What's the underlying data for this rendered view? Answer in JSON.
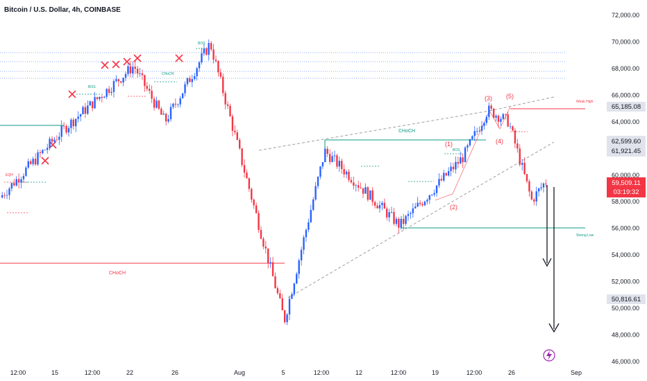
{
  "header": {
    "title": "Bitcoin / U.S. Dollar, 4h, COINBASE"
  },
  "colors": {
    "up": "#2962ff",
    "down": "#f23645",
    "teal": "#089981",
    "red": "#f23645",
    "blue_dotted": "#2962ff",
    "grey_dashed": "#9e9e9e",
    "axis_text": "#131722"
  },
  "price_axis": {
    "labels": [
      "72,000.00",
      "70,000.00",
      "68,000.00",
      "66,000.00",
      "64,000.00",
      "62,000.00",
      "60,000.00",
      "58,000.00",
      "56,000.00",
      "54,000.00",
      "52,000.00",
      "50,000.00",
      "48,000.00",
      "46,000.00"
    ],
    "tag_65185": "65,185.08",
    "tag_62599": "62,599.60",
    "tag_61921": "61,921.45",
    "tag_current": "59,509.11",
    "tag_countdown": "03:19:32",
    "tag_50816": "50,816.61"
  },
  "time_axis": {
    "labels": [
      "12:00",
      "15",
      "12:00",
      "22",
      "26",
      "Aug",
      "5",
      "12:00",
      "12",
      "12:00",
      "19",
      "12:00",
      "26",
      "Sep"
    ]
  },
  "annotations": {
    "choch_big": "CHoCH",
    "choch_mid": "CHoCH",
    "weak_high": "Weak High",
    "strong_low": "Strong Low",
    "wave1": "(1)",
    "wave2": "(2)",
    "wave3": "(3)",
    "wave4": "(4)",
    "wave5": "(5)",
    "bos_top": "BOS",
    "bos_left": "BOS",
    "bos_right": "BOS",
    "eqh": "EQH",
    "choch_small": "CHoCH"
  },
  "chart_data": {
    "type": "candlestick",
    "title": "Bitcoin / U.S. Dollar, 4h, COINBASE",
    "symbol": "BTCUSD",
    "timeframe": "4h",
    "exchange": "COINBASE",
    "ylim": [
      46000,
      72000
    ],
    "current_price": 59509.11,
    "x_ticks": [
      "12:00",
      "15",
      "12:00",
      "22",
      "26",
      "Aug",
      "5",
      "12:00",
      "12",
      "12:00",
      "19",
      "12:00",
      "26",
      "Sep"
    ],
    "key_levels": [
      {
        "name": "Weak High",
        "value": 65185.08
      },
      {
        "name": "Strong Low",
        "value": 56100
      },
      {
        "value": 62599.6
      },
      {
        "value": 61921.45
      },
      {
        "value": 50816.61
      }
    ],
    "swing_path": [
      {
        "t": "Jul 10",
        "price": 58200
      },
      {
        "t": "Jul 15",
        "price": 63500
      },
      {
        "t": "Jul 22",
        "price": 68200
      },
      {
        "t": "Jul 25",
        "price": 64000
      },
      {
        "t": "Jul 29",
        "price": 69900
      },
      {
        "t": "Aug 5",
        "price": 49100
      },
      {
        "t": "Aug 9",
        "price": 61800
      },
      {
        "t": "Aug 15",
        "price": 56200
      },
      {
        "t": "Aug 21",
        "price": 61400
      },
      {
        "t": "Aug 24",
        "price": 64900
      },
      {
        "t": "Aug 26",
        "price": 64000
      },
      {
        "t": "Aug 27",
        "price": 58100
      },
      {
        "t": "Aug 29",
        "price": 59509
      }
    ],
    "projection_targets": [
      54000,
      48000
    ]
  }
}
